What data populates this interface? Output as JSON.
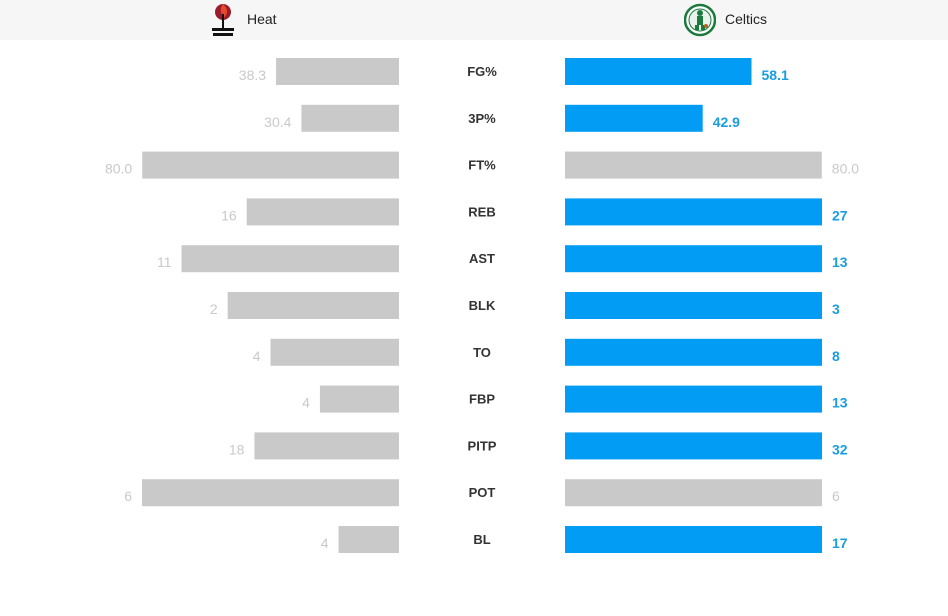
{
  "header": {
    "home_team": "Heat",
    "away_team": "Celtics",
    "home_logo_icon": "heat-logo-icon",
    "away_logo_icon": "celtics-logo-icon"
  },
  "colors": {
    "heat_bar": "#c9c9c9",
    "celtics_win_bar": "#039cf4",
    "celtics_tie_bar": "#c9c9c9",
    "win_value_text": "#1a9de0",
    "loss_value_text": "#c9c9c9"
  },
  "chart_data": {
    "type": "bar",
    "orientation": "horizontal-mirrored",
    "categories": [
      "FG%",
      "3P%",
      "FT%",
      "REB",
      "AST",
      "BLK",
      "TO",
      "FBP",
      "PITP",
      "POT",
      "BL"
    ],
    "series": [
      {
        "name": "Heat",
        "values": [
          38.3,
          30.4,
          80.0,
          16,
          11,
          2,
          4,
          4,
          18,
          6,
          4
        ],
        "labels": [
          "38.3",
          "30.4",
          "80.0",
          "16",
          "11",
          "2",
          "4",
          "4",
          "18",
          "6",
          "4"
        ]
      },
      {
        "name": "Celtics",
        "values": [
          58.1,
          42.9,
          80.0,
          27,
          13,
          3,
          8,
          13,
          32,
          6,
          17
        ],
        "labels": [
          "58.1",
          "42.9",
          "80.0",
          "27",
          "13",
          "3",
          "8",
          "13",
          "32",
          "6",
          "17"
        ]
      }
    ],
    "celtics_highlight": [
      true,
      true,
      false,
      true,
      true,
      true,
      true,
      true,
      true,
      false,
      true
    ],
    "grid": false,
    "legend": "none"
  }
}
